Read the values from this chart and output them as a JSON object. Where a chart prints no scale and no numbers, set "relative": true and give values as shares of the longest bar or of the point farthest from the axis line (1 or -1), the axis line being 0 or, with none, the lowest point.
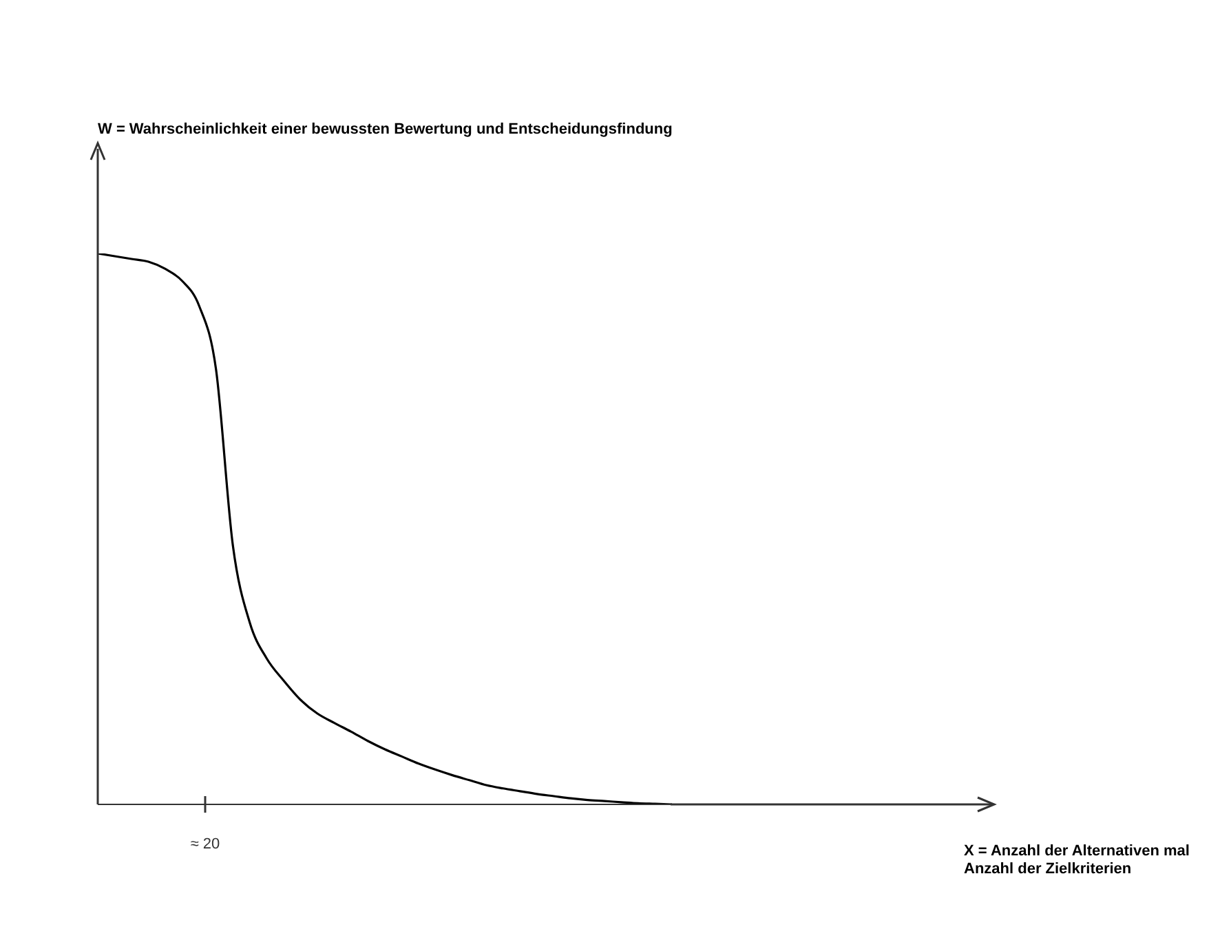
{
  "chart_data": {
    "type": "line",
    "title": "W = Wahrscheinlichkeit einer bewussten Bewertung und Entscheidungsfindung",
    "relative": true,
    "annotations": [
      "≈ 20",
      "X = Anzahl der Alternativen mal Anzahl der Zielkriterien"
    ],
    "categories": [
      null,
      null,
      null,
      null,
      null,
      null,
      null,
      null,
      null,
      null,
      null,
      null,
      null,
      null,
      null,
      null,
      null,
      null,
      null,
      null,
      null,
      null,
      null,
      null,
      null,
      null,
      null,
      null,
      null,
      null,
      null,
      null,
      null,
      null,
      null
    ],
    "series": [
      {
        "color": "#000000",
        "values": [
          1,
          0.995,
          0.99,
          0.985,
          0.972,
          0.95,
          0.905,
          0.79,
          0.47,
          0.33,
          0.265,
          0.225,
          0.19,
          0.165,
          0.148,
          0.132,
          0.115,
          0.1,
          0.087,
          0.074,
          0.063,
          0.053,
          0.044,
          0.035,
          0.029,
          0.024,
          0.019,
          0.015,
          0.011,
          0.008,
          0.006,
          0.004,
          0.002,
          0.001,
          0
        ]
      }
    ],
    "marker": "none",
    "line_style": "solid"
  }
}
